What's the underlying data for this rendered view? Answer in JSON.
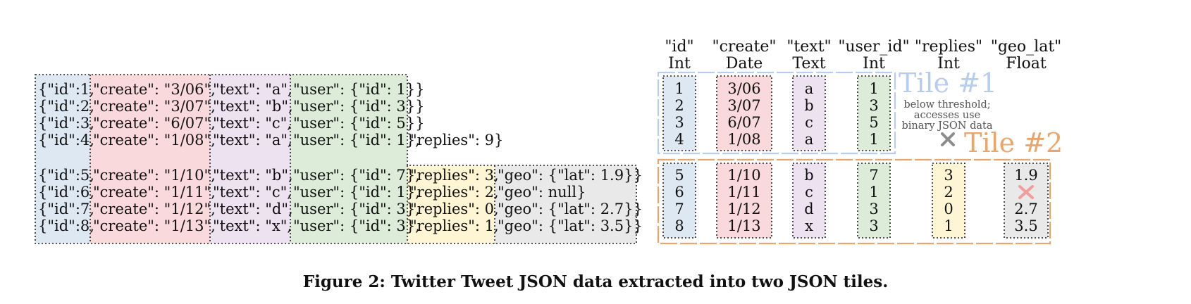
{
  "colors": {
    "id": "#dde8f3",
    "create": "#f9d9dc",
    "text": "#ede2f0",
    "user": "#dcecd9",
    "replies": "#fdf5d3",
    "geo": "#e9e9e9",
    "tile1": "#b7cdf0",
    "tile2": "#e9a56c",
    "missing": "#f29c9c",
    "missing_gray": "#8c8c8c"
  },
  "json_records": {
    "group1": [
      [
        "{\"id\":1,",
        "\"create\": \"3/06\",",
        "\"text\": \"a\",",
        "\"user\": {\"id\": 1}}"
      ],
      [
        "{\"id\":2,",
        "\"create\": \"3/07\",",
        "\"text\": \"b\",",
        "\"user\": {\"id\": 3}}"
      ],
      [
        "{\"id\":3,",
        "\"create\": \"6/07\",",
        "\"text\": \"c\",",
        "\"user\": {\"id\": 5}}"
      ],
      [
        "{\"id\":4,",
        "\"create\": \"1/08\",",
        "\"text\": \"a\",",
        "\"user\": {\"id\": 1},",
        "\"replies\": 9}"
      ]
    ],
    "group2": [
      [
        "{\"id\":5,",
        "\"create\": \"1/10\",",
        "\"text\": \"b\",",
        "\"user\": {\"id\": 7},",
        "\"replies\": 3,",
        "\"geo\": {\"lat\": 1.9}}"
      ],
      [
        "{\"id\":6,",
        "\"create\": \"1/11\",",
        "\"text\": \"c\",",
        "\"user\": {\"id\": 1},",
        "\"replies\": 2,",
        "\"geo\": null}"
      ],
      [
        "{\"id\":7,",
        "\"create\": \"1/12\",",
        "\"text\": \"d\",",
        "\"user\": {\"id\": 3},",
        "\"replies\": 0,",
        "\"geo\": {\"lat\": 2.7}}"
      ],
      [
        "{\"id\":8,",
        "\"create\": \"1/13\",",
        "\"text\": \"x\",",
        "\"user\": {\"id\": 3},",
        "\"replies\": 1,",
        "\"geo\": {\"lat\": 3.5}}"
      ]
    ]
  },
  "tile_columns": [
    {
      "name": "\"id\"",
      "type": "Int",
      "tile1": [
        "1",
        "2",
        "3",
        "4"
      ],
      "tile2": [
        "5",
        "6",
        "7",
        "8"
      ]
    },
    {
      "name": "\"create\"",
      "type": "Date",
      "tile1": [
        "3/06",
        "3/07",
        "6/07",
        "1/08"
      ],
      "tile2": [
        "1/10",
        "1/11",
        "1/12",
        "1/13"
      ]
    },
    {
      "name": "\"text\"",
      "type": "Text",
      "tile1": [
        "a",
        "b",
        "c",
        "a"
      ],
      "tile2": [
        "b",
        "c",
        "d",
        "x"
      ]
    },
    {
      "name": "\"user_id\"",
      "type": "Int",
      "tile1": [
        "1",
        "3",
        "5",
        "1"
      ],
      "tile2": [
        "7",
        "1",
        "3",
        "3"
      ]
    },
    {
      "name": "\"replies\"",
      "type": "Int",
      "tile1": null,
      "tile2": [
        "3",
        "2",
        "0",
        "1"
      ]
    },
    {
      "name": "\"geo_lat\"",
      "type": "Float",
      "tile1": null,
      "tile2": [
        "1.9",
        null,
        "2.7",
        "3.5"
      ]
    }
  ],
  "tile1_label": "Tile #1",
  "tile2_label": "Tile #2",
  "tile1_note": [
    "below threshold;",
    "accesses use",
    "binary JSON data"
  ],
  "caption": "Figure 2: Twitter Tweet JSON data extracted into two JSON tiles."
}
